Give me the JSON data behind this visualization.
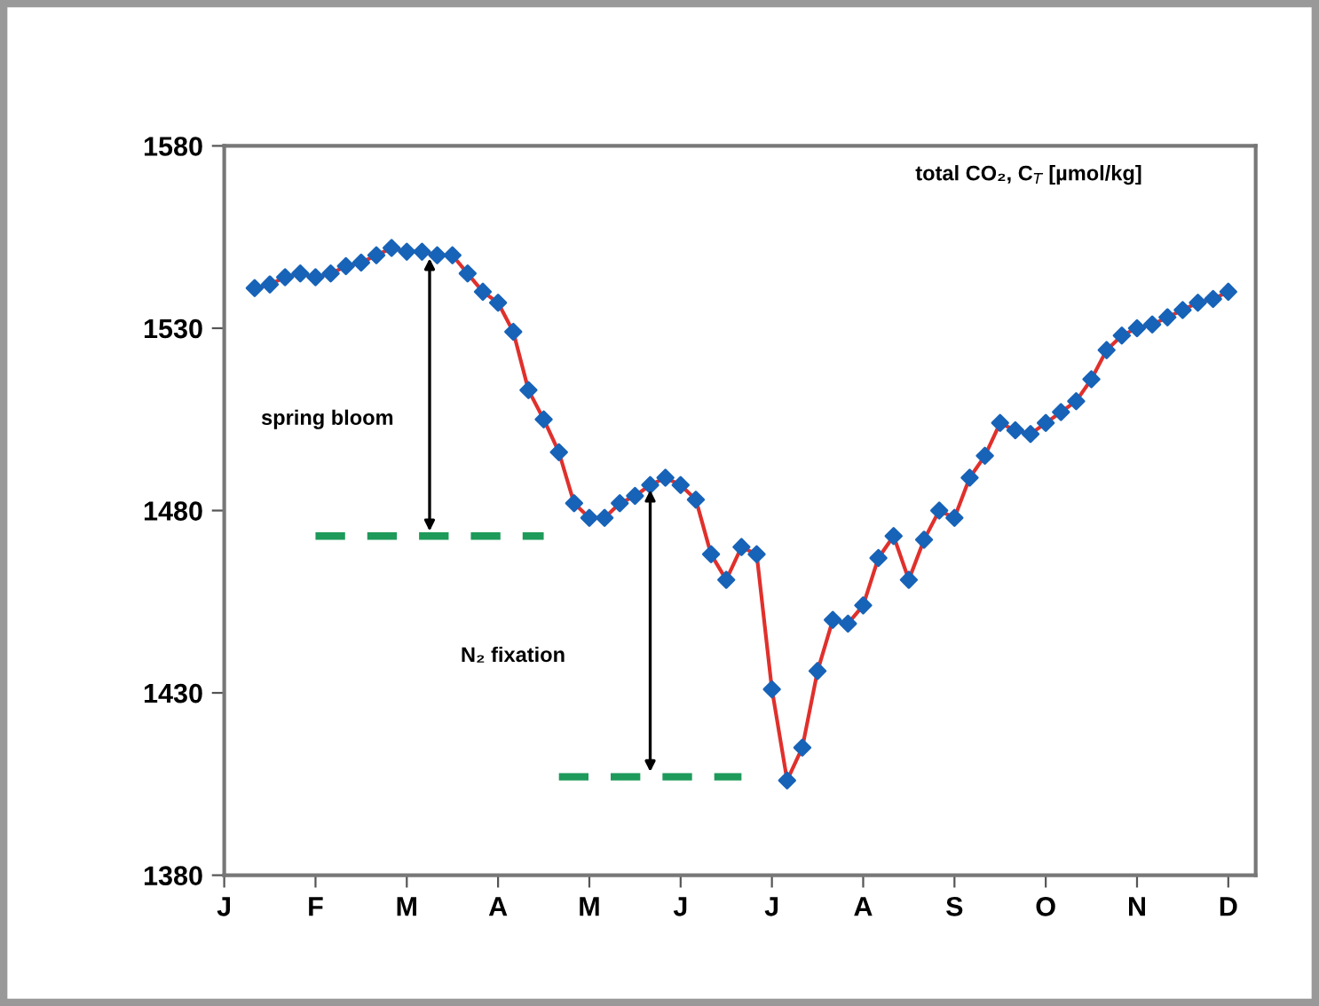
{
  "chart_data": {
    "type": "line",
    "annotations": [
      "total CO₂, C$_{T}$ [µmol/kg]",
      "spring bloom",
      "N₂ fixation"
    ],
    "categories": [
      "J",
      null,
      null,
      null,
      null,
      null,
      "F",
      null,
      null,
      null,
      null,
      null,
      "M",
      null,
      null,
      null,
      null,
      null,
      "A",
      null,
      null,
      null,
      null,
      null,
      "M",
      null,
      null,
      null,
      null,
      null,
      "J",
      null,
      null,
      null,
      null,
      null,
      "J",
      null,
      null,
      null,
      null,
      null,
      "A",
      null,
      null,
      null,
      null,
      null,
      "S",
      null,
      null,
      null,
      null,
      null,
      "O",
      null,
      null,
      null,
      null,
      null,
      "N",
      null,
      null,
      null,
      null,
      null,
      "D",
      null
    ],
    "series": [
      {
        "color": "#e0302c",
        "marker": "diamond",
        "colors": [
          "#1763b8",
          "#1763b8",
          "#1763b8",
          "#1763b8",
          "#1763b8",
          "#1763b8",
          "#1763b8",
          "#1763b8",
          "#1763b8",
          "#1763b8",
          "#1763b8",
          "#1763b8",
          "#1763b8",
          "#1763b8",
          "#1763b8",
          "#1763b8",
          "#1763b8",
          "#1763b8",
          "#1763b8",
          "#1763b8",
          "#1763b8",
          "#1763b8",
          "#1763b8",
          "#1763b8",
          "#1763b8",
          "#1763b8",
          "#1763b8",
          "#1763b8",
          "#1763b8",
          "#1763b8",
          "#1763b8",
          "#1763b8",
          "#1763b8",
          "#1763b8",
          "#1763b8",
          "#1763b8",
          "#1763b8",
          "#1763b8",
          "#1763b8",
          "#1763b8",
          "#1763b8",
          "#1763b8",
          "#1763b8",
          "#1763b8",
          "#1763b8",
          "#1763b8",
          "#1763b8",
          "#1763b8",
          "#1763b8",
          "#1763b8",
          "#1763b8",
          "#1763b8",
          "#1763b8",
          "#1763b8",
          "#1763b8",
          "#1763b8",
          "#1763b8",
          "#1763b8",
          "#1763b8",
          "#1763b8",
          "#1763b8",
          "#1763b8",
          "#1763b8",
          "#1763b8",
          "#1763b8",
          "#1763b8",
          "#1763b8",
          "#1763b8"
        ],
        "values": [
          null,
          null,
          1541,
          1542,
          1544,
          1545,
          1544,
          1545,
          1547,
          1548,
          1550,
          1552,
          1551,
          1551,
          1550,
          1550,
          1545,
          1540,
          1537,
          1529,
          1513,
          1505,
          1496,
          1482,
          1478,
          1478,
          1482,
          1484,
          1487,
          1489,
          1487,
          1483,
          1468,
          1461,
          1470,
          1468,
          1431,
          1406,
          1415,
          1436,
          1450,
          1449,
          1454,
          1467,
          1473,
          1461,
          1472,
          1480,
          1478,
          1489,
          1495,
          1504,
          1502,
          1501,
          1504,
          1507,
          1510,
          1516,
          1524,
          1528,
          1530,
          1531,
          1533,
          1535,
          1537,
          1538,
          1540,
          null
        ]
      },
      {
        "color": "#1e9a5a",
        "marker": "none",
        "line_style": "dashed",
        "values": [
          null,
          null,
          null,
          null,
          null,
          null,
          1473,
          1473,
          1473,
          1473,
          1473,
          1473,
          1473,
          1473,
          1473,
          1473,
          1473,
          1473,
          1473,
          1473,
          1473,
          1473,
          null,
          null,
          null,
          null,
          null,
          null,
          null,
          null,
          null,
          null,
          null,
          null,
          null,
          null,
          null,
          null,
          null,
          null,
          null,
          null,
          null,
          null,
          null,
          null,
          null,
          null,
          null,
          null,
          null,
          null,
          null,
          null,
          null,
          null,
          null,
          null,
          null,
          null,
          null,
          null,
          null,
          null,
          null,
          null,
          null,
          null
        ]
      },
      {
        "color": "#1e9a5a",
        "marker": "none",
        "line_style": "dashed",
        "values": [
          null,
          null,
          null,
          null,
          null,
          null,
          null,
          null,
          null,
          null,
          null,
          null,
          null,
          null,
          null,
          null,
          null,
          null,
          null,
          null,
          null,
          null,
          1407,
          1407,
          1407,
          1407,
          1407,
          1407,
          1407,
          1407,
          1407,
          1407,
          1407,
          1407,
          1407,
          null,
          null,
          null,
          null,
          null,
          null,
          null,
          null,
          null,
          null,
          null,
          null,
          null,
          null,
          null,
          null,
          null,
          null,
          null,
          null,
          null,
          null,
          null,
          null,
          null,
          null,
          null,
          null,
          null,
          null,
          null,
          null,
          null
        ]
      }
    ],
    "ylim": [
      1380,
      1580
    ],
    "yticks": [
      1380,
      1430,
      1480,
      1530,
      1580
    ],
    "grid": false
  }
}
